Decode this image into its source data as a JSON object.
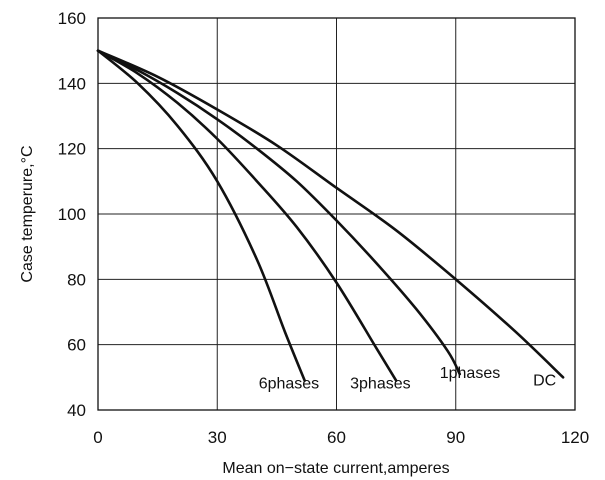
{
  "chart_data": {
    "type": "line",
    "xlabel": "Mean on−state current,amperes",
    "ylabel": "Case temperure,°C",
    "xlim": [
      0,
      120
    ],
    "ylim": [
      40,
      160
    ],
    "xticks": [
      "0",
      "30",
      "60",
      "90",
      "120"
    ],
    "yticks": [
      "40",
      "60",
      "80",
      "100",
      "120",
      "140",
      "160"
    ],
    "grid": true,
    "series": [
      {
        "name": "6phases",
        "x": [
          0,
          10,
          20,
          30,
          40,
          47,
          52
        ],
        "y": [
          150,
          140,
          127,
          110,
          86,
          64,
          49
        ]
      },
      {
        "name": "3phases",
        "x": [
          0,
          10,
          20,
          30,
          40,
          50,
          60,
          70,
          75
        ],
        "y": [
          150,
          143,
          134,
          123,
          110,
          96,
          79,
          59,
          49
        ]
      },
      {
        "name": "1phases",
        "x": [
          0,
          10,
          20,
          30,
          40,
          50,
          60,
          70,
          80,
          88,
          91
        ],
        "y": [
          150,
          144,
          137,
          129,
          120,
          110,
          98,
          85,
          71,
          58,
          51
        ]
      },
      {
        "name": "DC",
        "x": [
          0,
          15,
          30,
          45,
          60,
          75,
          90,
          105,
          117
        ],
        "y": [
          150,
          142,
          132,
          121,
          108,
          95,
          80,
          64,
          50
        ]
      }
    ]
  }
}
